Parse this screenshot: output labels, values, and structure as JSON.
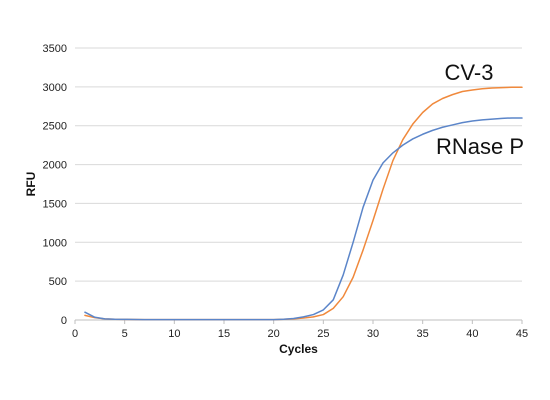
{
  "chart_data": {
    "type": "line",
    "xlabel": "Cycles",
    "ylabel": "RFU",
    "xlim": [
      0,
      45
    ],
    "ylim": [
      0,
      3500
    ],
    "xticks": [
      0,
      5,
      10,
      15,
      20,
      25,
      30,
      35,
      40,
      45
    ],
    "yticks": [
      0,
      500,
      1000,
      1500,
      2000,
      2500,
      3000,
      3500
    ],
    "grid": "horizontal",
    "series": [
      {
        "name": "CV-3",
        "color": "#f0893c",
        "x": [
          1,
          2,
          3,
          4,
          5,
          6,
          7,
          8,
          9,
          10,
          11,
          12,
          13,
          14,
          15,
          16,
          17,
          18,
          19,
          20,
          21,
          22,
          23,
          24,
          25,
          26,
          27,
          28,
          29,
          30,
          31,
          32,
          33,
          34,
          35,
          36,
          37,
          38,
          39,
          40,
          41,
          42,
          43,
          44,
          45
        ],
        "y": [
          60,
          30,
          15,
          10,
          8,
          6,
          5,
          5,
          5,
          5,
          5,
          5,
          5,
          5,
          5,
          5,
          5,
          5,
          5,
          5,
          10,
          15,
          25,
          40,
          70,
          150,
          300,
          550,
          900,
          1280,
          1680,
          2050,
          2320,
          2520,
          2670,
          2780,
          2850,
          2900,
          2940,
          2960,
          2975,
          2985,
          2990,
          2995,
          2995
        ]
      },
      {
        "name": "RNase P",
        "color": "#5b85c9",
        "x": [
          1,
          2,
          3,
          4,
          5,
          6,
          7,
          8,
          9,
          10,
          11,
          12,
          13,
          14,
          15,
          16,
          17,
          18,
          19,
          20,
          21,
          22,
          23,
          24,
          25,
          26,
          27,
          28,
          29,
          30,
          31,
          32,
          33,
          34,
          35,
          36,
          37,
          38,
          39,
          40,
          41,
          42,
          43,
          44,
          45
        ],
        "y": [
          100,
          35,
          15,
          10,
          8,
          6,
          5,
          5,
          5,
          5,
          5,
          5,
          5,
          5,
          5,
          5,
          5,
          5,
          5,
          5,
          10,
          20,
          40,
          70,
          130,
          260,
          580,
          1000,
          1450,
          1800,
          2020,
          2150,
          2250,
          2330,
          2390,
          2440,
          2480,
          2510,
          2540,
          2560,
          2575,
          2585,
          2595,
          2600,
          2600
        ]
      }
    ]
  }
}
